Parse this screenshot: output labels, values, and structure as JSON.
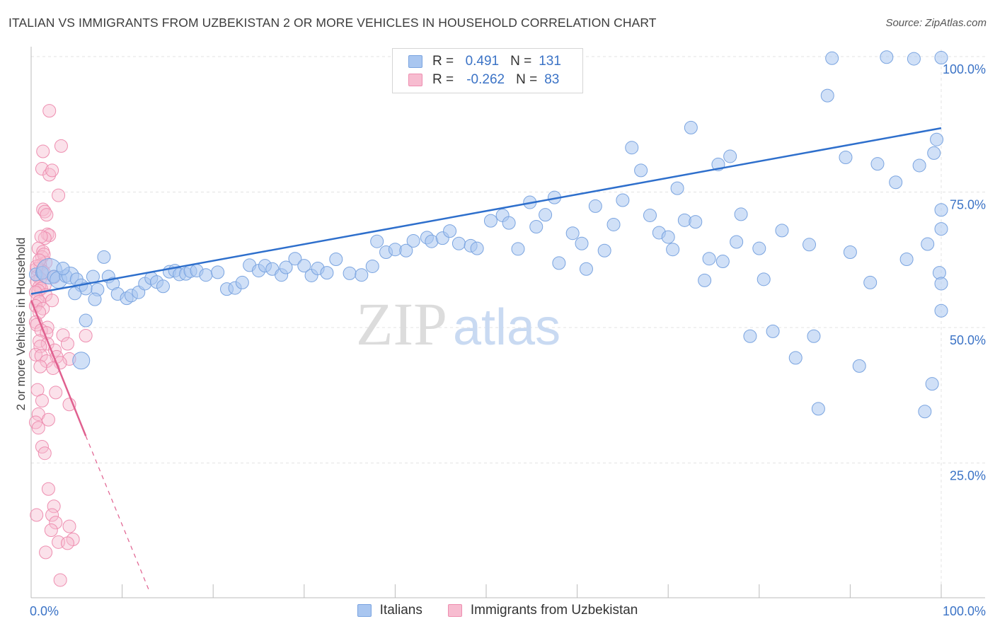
{
  "title": "ITALIAN VS IMMIGRANTS FROM UZBEKISTAN 2 OR MORE VEHICLES IN HOUSEHOLD CORRELATION CHART",
  "source": "Source: ZipAtlas.com",
  "watermark": {
    "zip": "ZIP",
    "atlas": "atlas"
  },
  "legend": {
    "r_label": "R =",
    "n_label": "N =",
    "rows": [
      {
        "r": "0.491",
        "n": "131"
      },
      {
        "r": "-0.262",
        "n": "83"
      }
    ]
  },
  "colors": {
    "italians_fill": "#a9c6f0",
    "italians_stroke": "#7aa4e0",
    "italians_line": "#2e6fcc",
    "uzbek_fill": "#f7bcd0",
    "uzbek_stroke": "#ee8eb0",
    "uzbek_line": "#e0608f",
    "tick_label": "#3b73c6",
    "grid": "#e3e3e3"
  },
  "chart_data": {
    "type": "scatter",
    "title": "ITALIAN VS IMMIGRANTS FROM UZBEKISTAN 2 OR MORE VEHICLES IN HOUSEHOLD CORRELATION CHART",
    "xlabel": "",
    "ylabel": "2 or more Vehicles in Household",
    "xlim": [
      0,
      100
    ],
    "ylim": [
      0,
      102
    ],
    "x_tick_labels": [
      "0.0%",
      "100.0%"
    ],
    "y_ticks": [
      25,
      50,
      75,
      100
    ],
    "y_tick_labels": [
      "25.0%",
      "50.0%",
      "75.0%",
      "100.0%"
    ],
    "grid": true,
    "legend_position": "top-center and bottom",
    "series": [
      {
        "name": "Italians",
        "r": 0.491,
        "n": 131,
        "trend": {
          "x0": 0,
          "y0": 56.2,
          "x1": 100,
          "y1": 86.8
        },
        "points": [
          [
            0.5,
            59.8,
            1
          ],
          [
            1.2,
            60.1,
            1
          ],
          [
            2.0,
            60.4,
            3
          ],
          [
            2.5,
            59.4,
            1
          ],
          [
            3.0,
            58.8,
            2
          ],
          [
            3.8,
            59.5,
            1
          ],
          [
            4.3,
            59.6,
            2
          ],
          [
            5.0,
            58.9,
            1
          ],
          [
            5.5,
            57.8,
            1
          ],
          [
            6.0,
            57.2,
            1
          ],
          [
            6.8,
            59.4,
            1
          ],
          [
            7.3,
            57.0,
            1
          ],
          [
            8.5,
            59.4,
            1
          ],
          [
            9.0,
            58.1,
            1
          ],
          [
            9.5,
            56.2,
            1
          ],
          [
            10.5,
            55.4,
            1
          ],
          [
            11.0,
            55.9,
            1
          ],
          [
            11.8,
            56.5,
            1
          ],
          [
            12.5,
            58.1,
            1
          ],
          [
            13.2,
            59.1,
            1
          ],
          [
            13.8,
            58.4,
            1
          ],
          [
            14.5,
            57.6,
            1
          ],
          [
            15.2,
            60.3,
            1
          ],
          [
            15.8,
            60.5,
            1
          ],
          [
            16.3,
            59.8,
            1
          ],
          [
            17.0,
            59.9,
            1
          ],
          [
            17.5,
            60.4,
            1
          ],
          [
            18.2,
            60.5,
            1
          ],
          [
            19.2,
            59.7,
            1
          ],
          [
            20.5,
            60.2,
            1
          ],
          [
            21.5,
            57.1,
            1
          ],
          [
            22.4,
            57.3,
            1
          ],
          [
            23.2,
            58.3,
            1
          ],
          [
            24.0,
            61.5,
            1
          ],
          [
            25.0,
            60.5,
            1
          ],
          [
            25.7,
            61.4,
            1
          ],
          [
            26.5,
            60.8,
            1
          ],
          [
            27.5,
            59.7,
            1
          ],
          [
            28.0,
            61.1,
            1
          ],
          [
            29.0,
            62.7,
            1
          ],
          [
            30.0,
            61.4,
            1
          ],
          [
            30.8,
            59.6,
            1
          ],
          [
            31.5,
            60.9,
            1
          ],
          [
            32.5,
            60.1,
            1
          ],
          [
            33.5,
            62.6,
            1
          ],
          [
            35.0,
            60.0,
            1
          ],
          [
            36.3,
            59.7,
            1
          ],
          [
            37.5,
            61.3,
            1
          ],
          [
            38.0,
            65.9,
            1
          ],
          [
            39.0,
            63.9,
            1
          ],
          [
            40.0,
            64.4,
            1
          ],
          [
            41.2,
            64.2,
            1
          ],
          [
            42.0,
            66.0,
            1
          ],
          [
            43.5,
            66.6,
            1
          ],
          [
            44.0,
            65.9,
            1
          ],
          [
            45.2,
            66.5,
            1
          ],
          [
            46.0,
            67.8,
            1
          ],
          [
            47.0,
            65.5,
            1
          ],
          [
            48.3,
            65.1,
            1
          ],
          [
            49.0,
            64.6,
            1
          ],
          [
            50.5,
            69.7,
            1
          ],
          [
            51.8,
            70.7,
            1
          ],
          [
            52.5,
            69.3,
            1
          ],
          [
            53.5,
            64.5,
            1
          ],
          [
            54.8,
            73.1,
            1
          ],
          [
            55.5,
            68.6,
            1
          ],
          [
            56.5,
            70.8,
            1
          ],
          [
            57.5,
            74.0,
            1
          ],
          [
            58.0,
            61.9,
            1
          ],
          [
            59.5,
            67.4,
            1
          ],
          [
            60.5,
            65.5,
            1
          ],
          [
            61.0,
            60.8,
            1
          ],
          [
            62.0,
            72.4,
            1
          ],
          [
            63.0,
            64.2,
            1
          ],
          [
            64.0,
            69.0,
            1
          ],
          [
            65.0,
            73.5,
            1
          ],
          [
            66.0,
            83.2,
            1
          ],
          [
            67.0,
            79.0,
            1
          ],
          [
            68.0,
            70.7,
            1
          ],
          [
            69.0,
            67.5,
            1
          ],
          [
            70.0,
            66.7,
            1
          ],
          [
            70.5,
            64.4,
            1
          ],
          [
            71.0,
            75.7,
            1
          ],
          [
            71.8,
            69.8,
            1
          ],
          [
            72.5,
            86.9,
            1
          ],
          [
            73.0,
            69.5,
            1
          ],
          [
            74.0,
            58.7,
            1
          ],
          [
            74.5,
            62.7,
            1
          ],
          [
            75.5,
            80.1,
            1
          ],
          [
            76.0,
            62.2,
            1
          ],
          [
            76.8,
            81.6,
            1
          ],
          [
            77.5,
            65.8,
            1
          ],
          [
            78.0,
            70.9,
            1
          ],
          [
            79.0,
            48.4,
            1
          ],
          [
            80.0,
            64.6,
            1
          ],
          [
            80.5,
            58.9,
            1
          ],
          [
            81.5,
            49.3,
            1
          ],
          [
            82.5,
            67.9,
            1
          ],
          [
            84.0,
            44.4,
            1
          ],
          [
            85.5,
            65.3,
            1
          ],
          [
            86.0,
            48.4,
            1
          ],
          [
            86.5,
            35.0,
            1
          ],
          [
            87.5,
            92.8,
            1
          ],
          [
            88.0,
            99.7,
            1
          ],
          [
            89.5,
            81.4,
            1
          ],
          [
            90.0,
            63.9,
            1
          ],
          [
            91.0,
            42.9,
            1
          ],
          [
            92.2,
            58.3,
            1
          ],
          [
            93.0,
            80.2,
            1
          ],
          [
            94.0,
            99.9,
            1
          ],
          [
            95.0,
            76.8,
            1
          ],
          [
            96.2,
            62.6,
            1
          ],
          [
            97.0,
            99.6,
            1
          ],
          [
            97.6,
            79.9,
            1
          ],
          [
            98.2,
            34.5,
            1
          ],
          [
            98.5,
            65.4,
            1
          ],
          [
            99.0,
            39.6,
            1
          ],
          [
            99.2,
            82.2,
            1
          ],
          [
            99.5,
            84.7,
            1
          ],
          [
            99.8,
            60.1,
            1
          ],
          [
            100,
            58.1,
            1
          ],
          [
            100,
            53.1,
            1
          ],
          [
            100,
            71.7,
            1
          ],
          [
            100,
            99.8,
            1
          ],
          [
            100,
            68.2,
            1
          ],
          [
            8.0,
            63.0,
            1
          ],
          [
            6.0,
            51.3,
            1
          ],
          [
            5.5,
            43.9,
            2
          ],
          [
            7.0,
            55.2,
            1
          ],
          [
            4.8,
            56.3,
            1
          ],
          [
            3.5,
            60.9,
            1
          ]
        ]
      },
      {
        "name": "Immigrants from Uzbekistan",
        "r": -0.262,
        "n": 83,
        "trend": {
          "x0": 0,
          "y0": 55.0,
          "x1": 6.0,
          "y1": 30.0,
          "dash_to": {
            "x": 13.0,
            "y": 1.3
          }
        },
        "points": [
          [
            2.0,
            90.0,
            1
          ],
          [
            3.3,
            83.5,
            1
          ],
          [
            1.3,
            82.5,
            1
          ],
          [
            1.2,
            79.3,
            1
          ],
          [
            2.0,
            78.2,
            1
          ],
          [
            2.3,
            79.0,
            1
          ],
          [
            3.0,
            74.4,
            1
          ],
          [
            1.3,
            71.8,
            1
          ],
          [
            1.5,
            71.4,
            1
          ],
          [
            1.7,
            70.8,
            1
          ],
          [
            1.8,
            67.2,
            1
          ],
          [
            2.0,
            67.0,
            1
          ],
          [
            1.5,
            66.5,
            1
          ],
          [
            0.8,
            64.6,
            1
          ],
          [
            1.3,
            64.0,
            1
          ],
          [
            1.2,
            63.0,
            1
          ],
          [
            1.6,
            62.0,
            1
          ],
          [
            1.0,
            61.5,
            1
          ],
          [
            0.6,
            60.8,
            1
          ],
          [
            1.2,
            60.5,
            1
          ],
          [
            1.4,
            60.2,
            1
          ],
          [
            0.7,
            59.5,
            1
          ],
          [
            1.0,
            59.0,
            1
          ],
          [
            0.6,
            58.5,
            1
          ],
          [
            1.5,
            57.8,
            1
          ],
          [
            0.9,
            57.5,
            1
          ],
          [
            1.1,
            57.2,
            1
          ],
          [
            0.8,
            56.8,
            1
          ],
          [
            0.5,
            56.5,
            1
          ],
          [
            1.6,
            56.0,
            1
          ],
          [
            0.7,
            55.3,
            1
          ],
          [
            2.3,
            55.0,
            1
          ],
          [
            0.9,
            54.8,
            1
          ],
          [
            0.5,
            54.0,
            1
          ],
          [
            1.3,
            53.5,
            1
          ],
          [
            0.9,
            52.8,
            1
          ],
          [
            0.5,
            51.0,
            1
          ],
          [
            0.6,
            50.5,
            1
          ],
          [
            1.8,
            50.0,
            1
          ],
          [
            1.1,
            49.5,
            1
          ],
          [
            1.7,
            49.0,
            1
          ],
          [
            3.5,
            48.6,
            1
          ],
          [
            6.0,
            48.5,
            1
          ],
          [
            0.9,
            47.5,
            1
          ],
          [
            1.8,
            47.0,
            1
          ],
          [
            4.0,
            47.0,
            1
          ],
          [
            1.0,
            46.5,
            1
          ],
          [
            2.6,
            45.8,
            1
          ],
          [
            0.5,
            45.0,
            1
          ],
          [
            1.1,
            44.8,
            1
          ],
          [
            2.8,
            44.6,
            1
          ],
          [
            4.2,
            44.2,
            1
          ],
          [
            1.7,
            43.8,
            1
          ],
          [
            3.2,
            43.5,
            1
          ],
          [
            1.0,
            42.8,
            1
          ],
          [
            2.4,
            42.5,
            1
          ],
          [
            0.7,
            38.5,
            1
          ],
          [
            2.7,
            38.0,
            1
          ],
          [
            1.2,
            36.5,
            1
          ],
          [
            4.2,
            35.8,
            1
          ],
          [
            0.8,
            34.0,
            1
          ],
          [
            1.9,
            33.0,
            1
          ],
          [
            0.5,
            32.5,
            1
          ],
          [
            0.8,
            31.5,
            1
          ],
          [
            1.2,
            28.0,
            1
          ],
          [
            1.5,
            26.8,
            1
          ],
          [
            1.9,
            20.2,
            1
          ],
          [
            0.6,
            15.4,
            1
          ],
          [
            2.5,
            17.0,
            1
          ],
          [
            2.3,
            15.4,
            1
          ],
          [
            2.7,
            14.0,
            1
          ],
          [
            2.2,
            12.6,
            1
          ],
          [
            4.2,
            13.3,
            1
          ],
          [
            4.6,
            10.9,
            1
          ],
          [
            3.0,
            10.4,
            1
          ],
          [
            4.0,
            10.2,
            1
          ],
          [
            1.6,
            8.5,
            1
          ],
          [
            3.2,
            3.4,
            1
          ],
          [
            0.6,
            61.3,
            1
          ],
          [
            1.4,
            63.5,
            1
          ],
          [
            2.5,
            59.3,
            1
          ],
          [
            0.9,
            62.4,
            1
          ],
          [
            1.1,
            66.8,
            1
          ]
        ]
      }
    ]
  }
}
